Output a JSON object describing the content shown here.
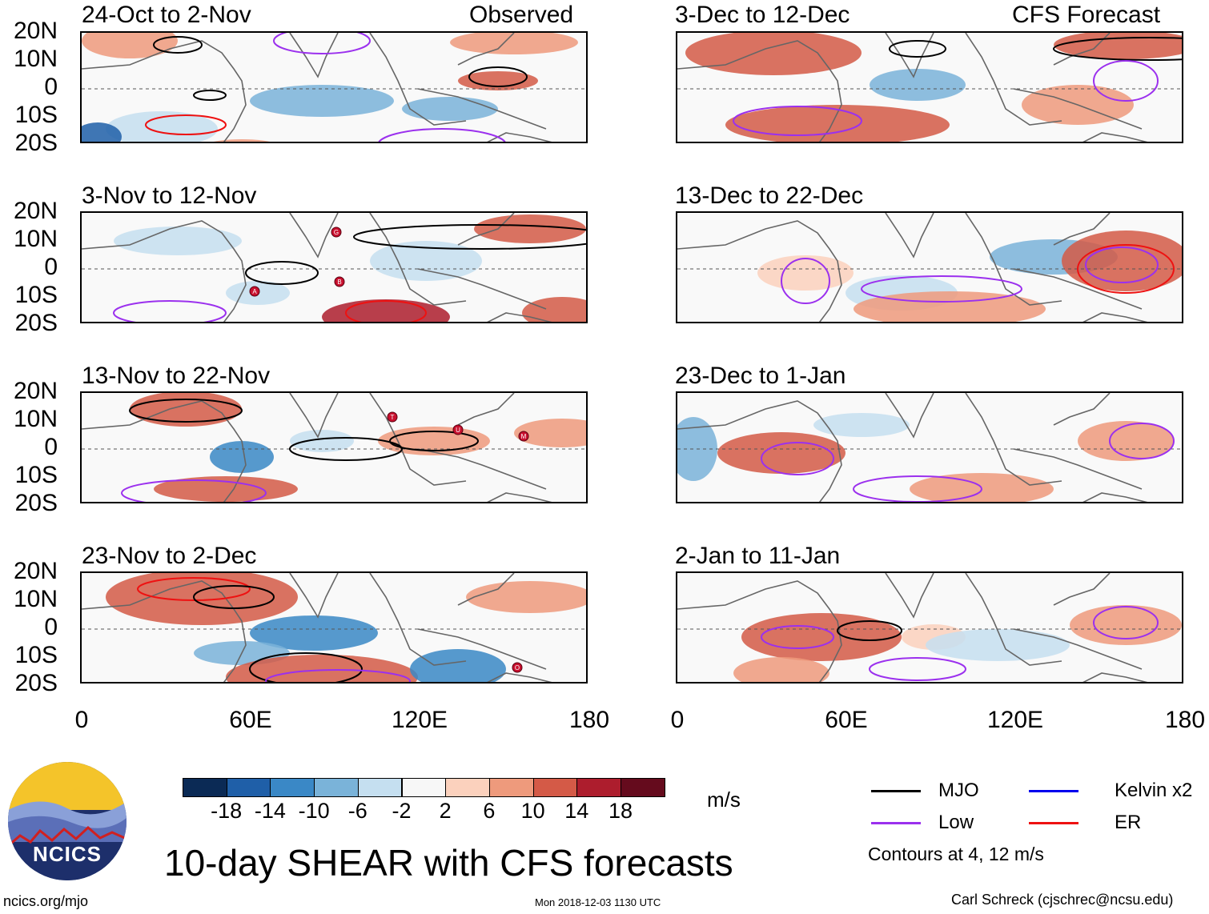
{
  "chart_data": {
    "type": "heatmap",
    "title": "10-day SHEAR with CFS forecasts",
    "variable": "10-day SHEAR",
    "units": "m/s",
    "columns": [
      {
        "label": "Observed",
        "panels": [
          "24-Oct to 2-Nov",
          "3-Nov to 12-Nov",
          "13-Nov to 22-Nov",
          "23-Nov to 2-Dec"
        ]
      },
      {
        "label": "CFS Forecast",
        "panels": [
          "3-Dec to 12-Dec",
          "13-Dec to 22-Dec",
          "23-Dec to 1-Jan",
          "2-Jan to 11-Jan"
        ]
      }
    ],
    "y_ticks": [
      "20N",
      "10N",
      "0",
      "10S",
      "20S"
    ],
    "x_ticks": [
      "0",
      "60E",
      "120E",
      "180"
    ],
    "xlim": [
      0,
      180
    ],
    "ylim": [
      -20,
      20
    ],
    "colorbar": {
      "labels": [
        "-18",
        "-14",
        "-10",
        "-6",
        "-2",
        "2",
        "6",
        "10",
        "14",
        "18"
      ],
      "colors": [
        "#0b2a55",
        "#1f5fa8",
        "#3a88c6",
        "#7ab3d9",
        "#c5dff0",
        "#f7f7f7",
        "#fbd1bd",
        "#ee9a7c",
        "#d45a47",
        "#ad1d2d",
        "#650b1d"
      ]
    },
    "legend": [
      {
        "label": "MJO",
        "color": "#000000"
      },
      {
        "label": "Kelvin x2",
        "color": "#0000ee"
      },
      {
        "label": "Low",
        "color": "#9b30ee"
      },
      {
        "label": "ER",
        "color": "#ee1111"
      }
    ],
    "contour_note": "Contours at 4, 12 m/s",
    "storm_markers": [
      "G",
      "A",
      "B",
      "T",
      "U",
      "M",
      "O"
    ]
  },
  "footer": {
    "url": "ncics.org/mjo",
    "timestamp": "Mon 2018-12-03 1130 UTC",
    "credit": "Carl Schreck (cjschrec@ncsu.edu)",
    "logo_text": "NCICS"
  }
}
